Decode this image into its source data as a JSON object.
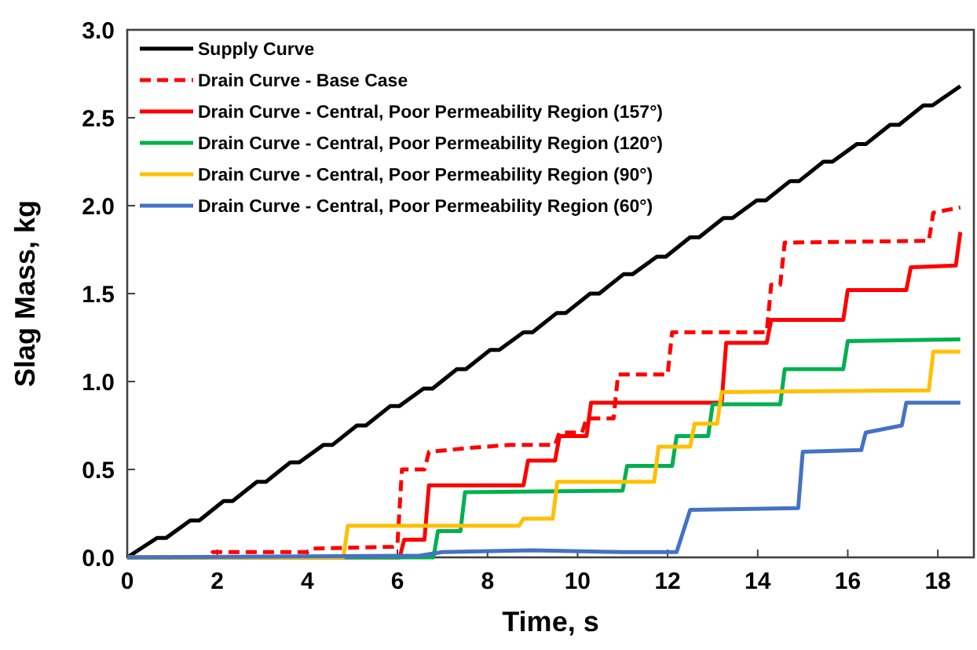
{
  "chart_data": {
    "type": "line",
    "xlabel": "Time, s",
    "ylabel": "Slag Mass, kg",
    "xlim": [
      0,
      18.8
    ],
    "ylim": [
      0,
      3
    ],
    "xticks": [
      0,
      2,
      4,
      6,
      8,
      10,
      12,
      14,
      16,
      18
    ],
    "yticks": [
      {
        "value": 0,
        "label": "0.0"
      },
      {
        "value": 0.5,
        "label": "0.5"
      },
      {
        "value": 1,
        "label": "1.0"
      },
      {
        "value": 1.5,
        "label": "1.5"
      },
      {
        "value": 2,
        "label": "2.0"
      },
      {
        "value": 2.5,
        "label": "2.5"
      },
      {
        "value": 3,
        "label": "3.0"
      }
    ],
    "legend": "top left",
    "grid": false,
    "marker": "none",
    "line_style": "solid",
    "series": [
      {
        "name": "Supply Curve",
        "color": "#000000",
        "x": [
          0,
          0.66,
          0.86,
          1.4,
          1.6,
          2.14,
          2.34,
          2.88,
          3.08,
          3.62,
          3.82,
          4.36,
          4.56,
          5.1,
          5.3,
          5.84,
          6.04,
          6.58,
          6.78,
          7.32,
          7.52,
          8.06,
          8.26,
          8.8,
          9.0,
          9.54,
          9.74,
          10.28,
          10.48,
          11.02,
          11.22,
          11.76,
          11.96,
          12.5,
          12.7,
          13.24,
          13.44,
          13.98,
          14.18,
          14.72,
          14.92,
          15.46,
          15.66,
          16.2,
          16.4,
          16.94,
          17.14,
          17.68,
          17.88,
          18.5
        ],
        "values": [
          0,
          0.11,
          0.11,
          0.21,
          0.21,
          0.32,
          0.32,
          0.43,
          0.43,
          0.54,
          0.54,
          0.64,
          0.64,
          0.75,
          0.75,
          0.86,
          0.86,
          0.96,
          0.96,
          1.07,
          1.07,
          1.18,
          1.18,
          1.28,
          1.28,
          1.39,
          1.39,
          1.5,
          1.5,
          1.61,
          1.61,
          1.71,
          1.71,
          1.82,
          1.82,
          1.93,
          1.93,
          2.03,
          2.03,
          2.14,
          2.14,
          2.25,
          2.25,
          2.35,
          2.35,
          2.46,
          2.46,
          2.57,
          2.57,
          2.68
        ]
      },
      {
        "name": "Drain Curve - Base Case",
        "color": "#ff0000",
        "line_style": "dashed",
        "x": [
          0,
          1.8,
          1.9,
          4.0,
          4.1,
          5.9,
          6.0,
          6.1,
          6.6,
          6.7,
          7.5,
          8.5,
          9.5,
          9.6,
          10.1,
          10.2,
          10.8,
          10.9,
          12.0,
          12.1,
          14.2,
          14.3,
          14.5,
          14.6,
          17.8,
          17.9,
          18.5
        ],
        "values": [
          0,
          0,
          0.03,
          0.03,
          0.05,
          0.06,
          0.07,
          0.5,
          0.5,
          0.6,
          0.62,
          0.64,
          0.64,
          0.71,
          0.71,
          0.79,
          0.79,
          1.04,
          1.04,
          1.28,
          1.28,
          1.55,
          1.55,
          1.79,
          1.8,
          1.96,
          1.99
        ]
      },
      {
        "name": "Drain Curve - Central, Poor Permeability Region (157°)",
        "color": "#ff0000",
        "x": [
          0,
          6.05,
          6.15,
          6.6,
          6.7,
          8.8,
          8.9,
          9.5,
          9.6,
          10.2,
          10.3,
          13.2,
          13.3,
          14.2,
          14.3,
          15.9,
          16.0,
          17.3,
          17.4,
          18.4,
          18.5
        ],
        "values": [
          0,
          0,
          0.1,
          0.1,
          0.41,
          0.41,
          0.55,
          0.55,
          0.69,
          0.69,
          0.88,
          0.88,
          1.22,
          1.22,
          1.35,
          1.35,
          1.52,
          1.52,
          1.65,
          1.66,
          1.85
        ]
      },
      {
        "name": "Drain Curve - Central, Poor Permeability Region (120°)",
        "color": "#00b050",
        "x": [
          0,
          6.8,
          6.9,
          7.4,
          7.5,
          11.0,
          11.1,
          12.1,
          12.2,
          12.9,
          13.0,
          14.5,
          14.6,
          15.9,
          16.0,
          18.5
        ],
        "values": [
          0,
          0,
          0.15,
          0.15,
          0.37,
          0.38,
          0.52,
          0.52,
          0.69,
          0.69,
          0.87,
          0.87,
          1.07,
          1.07,
          1.23,
          1.24
        ]
      },
      {
        "name": "Drain Curve - Central, Poor Permeability Region (90°)",
        "color": "#ffc000",
        "x": [
          0,
          4.8,
          4.9,
          8.7,
          8.8,
          9.45,
          9.55,
          11.7,
          11.8,
          12.5,
          12.6,
          13.1,
          13.2,
          17.8,
          17.9,
          18.5
        ],
        "values": [
          0,
          0,
          0.18,
          0.18,
          0.22,
          0.22,
          0.43,
          0.43,
          0.63,
          0.63,
          0.76,
          0.76,
          0.94,
          0.95,
          1.17,
          1.17
        ]
      },
      {
        "name": "Drain Curve - Central, Poor Permeability Region (60°)",
        "color": "#4472c4",
        "x": [
          0,
          6.5,
          7.0,
          9.0,
          11.0,
          12.2,
          12.5,
          14.9,
          15.0,
          16.3,
          16.4,
          17.2,
          17.3,
          18.5
        ],
        "values": [
          0,
          0.01,
          0.03,
          0.04,
          0.03,
          0.03,
          0.27,
          0.28,
          0.6,
          0.61,
          0.71,
          0.75,
          0.88,
          0.88
        ]
      }
    ]
  }
}
